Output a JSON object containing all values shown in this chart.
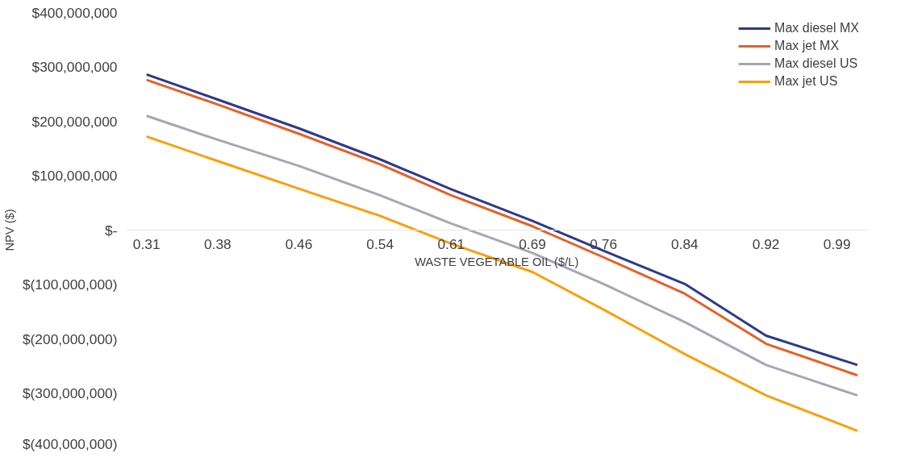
{
  "chart_data": {
    "type": "line",
    "xlabel": "WASTE VEGETABLE OIL ($/L)",
    "ylabel": "NPV ($)",
    "x": [
      0.31,
      0.38,
      0.46,
      0.54,
      0.61,
      0.69,
      0.76,
      0.84,
      0.92,
      1.01
    ],
    "series": [
      {
        "name": "Max diesel MX",
        "color": "#2e3a87",
        "values": [
          286000000,
          240000000,
          187000000,
          130000000,
          75000000,
          17000000,
          -38000000,
          -99000000,
          -194000000,
          -248000000
        ]
      },
      {
        "name": "Max jet MX",
        "color": "#e0622a",
        "values": [
          276000000,
          231000000,
          177000000,
          121000000,
          64000000,
          7000000,
          -50000000,
          -117000000,
          -209000000,
          -267000000
        ]
      },
      {
        "name": "Max diesel US",
        "color": "#a6a6b8",
        "values": [
          210000000,
          166000000,
          118000000,
          64000000,
          12000000,
          -42000000,
          -99000000,
          -169000000,
          -248000000,
          -304000000
        ]
      },
      {
        "name": "Max jet US",
        "color": "#f5a10f",
        "values": [
          172000000,
          127000000,
          76000000,
          26000000,
          -25000000,
          -77000000,
          -146000000,
          -228000000,
          -304000000,
          -369000000
        ]
      }
    ],
    "xlim": [
      0.29,
      1.02
    ],
    "xticks": [
      0.31,
      0.38,
      0.46,
      0.54,
      0.61,
      0.69,
      0.76,
      0.84,
      0.92,
      0.99
    ],
    "ylim": [
      -400000000,
      400000000
    ],
    "yticks": [
      {
        "value": 400000000,
        "label": "$400,000,000"
      },
      {
        "value": 300000000,
        "label": "$300,000,000"
      },
      {
        "value": 200000000,
        "label": "$200,000,000"
      },
      {
        "value": 100000000,
        "label": "$100,000,000"
      },
      {
        "value": 0,
        "label": "$-"
      },
      {
        "value": -100000000,
        "label": "$(100,000,000)"
      },
      {
        "value": -200000000,
        "label": "$(200,000,000)"
      },
      {
        "value": -300000000,
        "label": "$(300,000,000)"
      },
      {
        "value": -400000000,
        "label": "$(400,000,000)"
      }
    ],
    "grid": false,
    "legend": "top right",
    "line_style": "solid",
    "marker": "none"
  }
}
